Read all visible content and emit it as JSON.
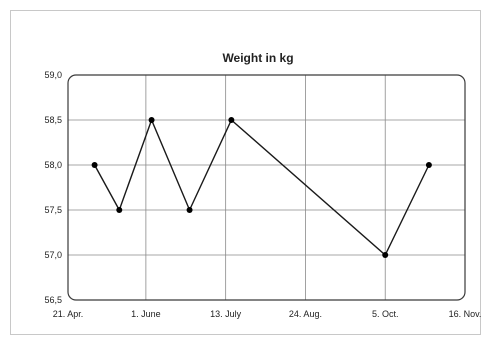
{
  "chart_data": {
    "type": "line",
    "title": "Weight in kg",
    "xlabel": "",
    "ylabel": "",
    "x_tick_labels": [
      "21. Apr.",
      "1. June",
      "13. July",
      "24. Aug.",
      "5. Oct.",
      "16. Nov."
    ],
    "y_tick_labels": [
      "59,0",
      "58,5",
      "58,0",
      "57,5",
      "57,0",
      "56,5"
    ],
    "ylim": [
      56.5,
      59.0
    ],
    "xlim": [
      "21. Apr.",
      "16. Nov."
    ],
    "grid": true,
    "legend": "none",
    "series": [
      {
        "points": [
          {
            "x": "5. May",
            "y": 58.0
          },
          {
            "x": "18. May",
            "y": 57.5
          },
          {
            "x": "4. June",
            "y": 58.5
          },
          {
            "x": "24. June",
            "y": 57.5
          },
          {
            "x": "16. July",
            "y": 58.5
          },
          {
            "x": "5. Oct.",
            "y": 57.0
          },
          {
            "x": "28. Oct.",
            "y": 58.0
          }
        ]
      }
    ],
    "colors": {
      "line": "#1a1a1a",
      "marker": "#000000",
      "grid": "#8a8a8a",
      "frame": "#3a3a3a"
    }
  }
}
